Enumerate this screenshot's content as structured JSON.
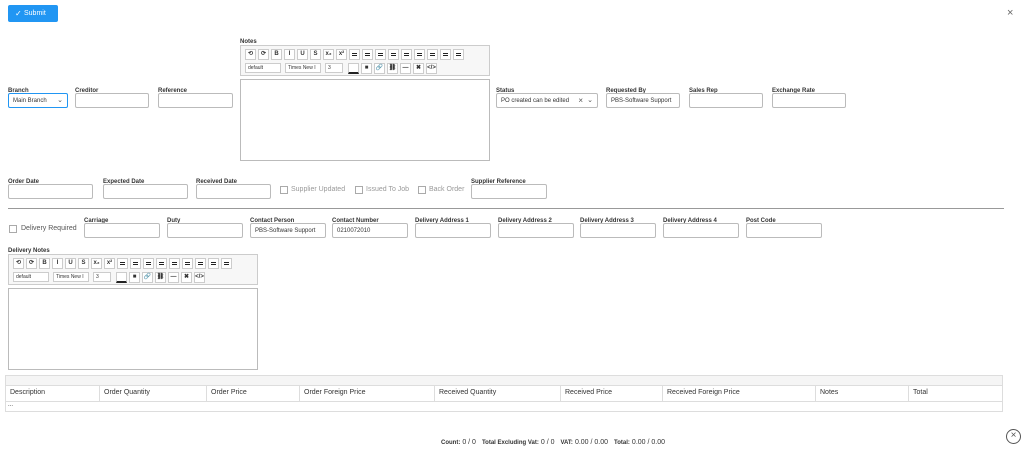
{
  "submit": "Submit",
  "notes_label": "Notes",
  "editor": {
    "buttons": [
      "B",
      "I",
      "U",
      "S",
      "x₂",
      "x²"
    ],
    "font_format": "default",
    "font_family": "Times New I",
    "font_size": "3"
  },
  "fields_top": [
    {
      "label": "Branch",
      "value": "Main Branch"
    },
    {
      "label": "Creditor"
    },
    {
      "label": "Reference"
    },
    {
      "label": "Status",
      "value": "PO created can be edited"
    },
    {
      "label": "Requested By",
      "value": "PBS-Software Support"
    },
    {
      "label": "Sales Rep"
    },
    {
      "label": "Exchange Rate"
    }
  ],
  "fields_dates": [
    {
      "label": "Order Date"
    },
    {
      "label": "Expected Date"
    },
    {
      "label": "Received Date"
    },
    {
      "label": "Supplier Reference"
    }
  ],
  "checks": [
    "Supplier Updated",
    "Issued To Job",
    "Back Order"
  ],
  "delivery_required": "Delivery Required",
  "fields_delivery": [
    {
      "label": "Carriage"
    },
    {
      "label": "Duty"
    },
    {
      "label": "Contact Person",
      "value": "PBS-Software Support"
    },
    {
      "label": "Contact Number",
      "value": "0210072010"
    },
    {
      "label": "Delivery Address 1"
    },
    {
      "label": "Delivery Address 2"
    },
    {
      "label": "Delivery Address 3"
    },
    {
      "label": "Delivery Address 4"
    },
    {
      "label": "Post Code"
    }
  ],
  "delivery_notes_label": "Delivery Notes",
  "table": {
    "columns": [
      "Description",
      "Order Quantity",
      "Order Price",
      "Order Foreign Price",
      "Received Quantity",
      "Received Price",
      "Received Foreign Price",
      "Notes",
      "Total"
    ],
    "rows": [
      [
        "..."
      ]
    ]
  },
  "footer": [
    {
      "label": "Count:",
      "value": "0 / 0"
    },
    {
      "label": "Total Excluding Vat:",
      "value": "0 / 0"
    },
    {
      "label": "VAT:",
      "value": "0.00 / 0.00"
    },
    {
      "label": "Total:",
      "value": "0.00 / 0.00"
    }
  ]
}
